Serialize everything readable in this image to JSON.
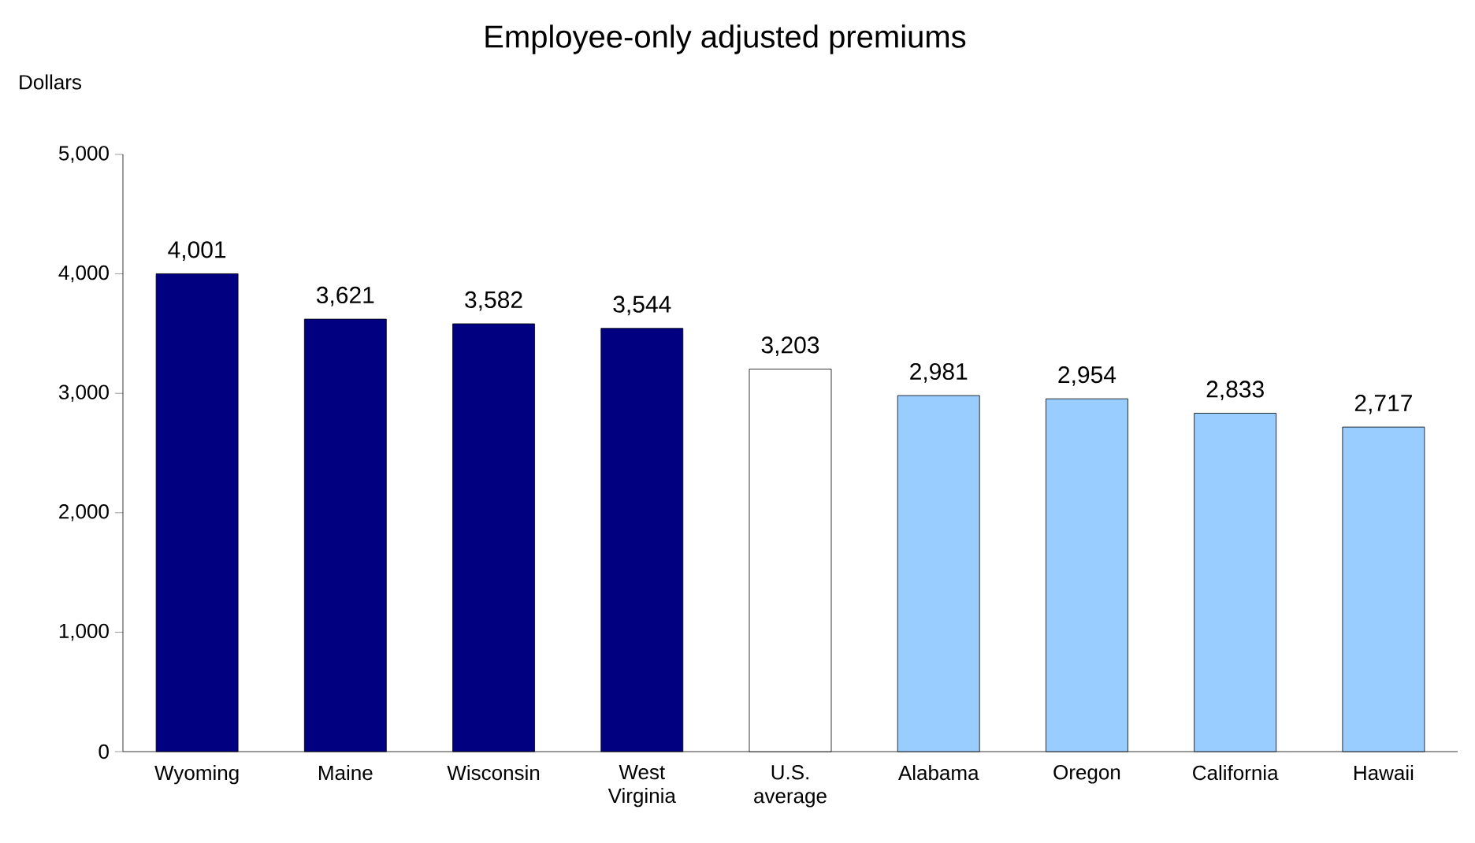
{
  "chart_data": {
    "type": "bar",
    "title": "Employee-only adjusted premiums",
    "ylabel": "Dollars",
    "categories": [
      "Wyoming",
      "Maine",
      "Wisconsin",
      "West Virginia",
      "U.S. average",
      "Alabama",
      "Oregon",
      "California",
      "Hawaii"
    ],
    "values": [
      4001,
      3621,
      3582,
      3544,
      3203,
      2981,
      2954,
      2833,
      2717
    ],
    "colors": [
      "#000080",
      "#000080",
      "#000080",
      "#000080",
      "#ffffff",
      "#99ccff",
      "#99ccff",
      "#99ccff",
      "#99ccff"
    ],
    "value_labels": [
      "4,001",
      "3,621",
      "3,582",
      "3,544",
      "3,203",
      "2,981",
      "2,954",
      "2,833",
      "2,717"
    ],
    "ylim": [
      0,
      5000
    ],
    "yticks": [
      0,
      {
        "value": 1000,
        "label": "1,000"
      },
      {
        "value": 2000,
        "label": "2,000"
      },
      {
        "value": 3000,
        "label": "3,000"
      },
      {
        "value": 4000,
        "label": "4,000"
      },
      {
        "value": 5000,
        "label": "5,000"
      }
    ]
  }
}
